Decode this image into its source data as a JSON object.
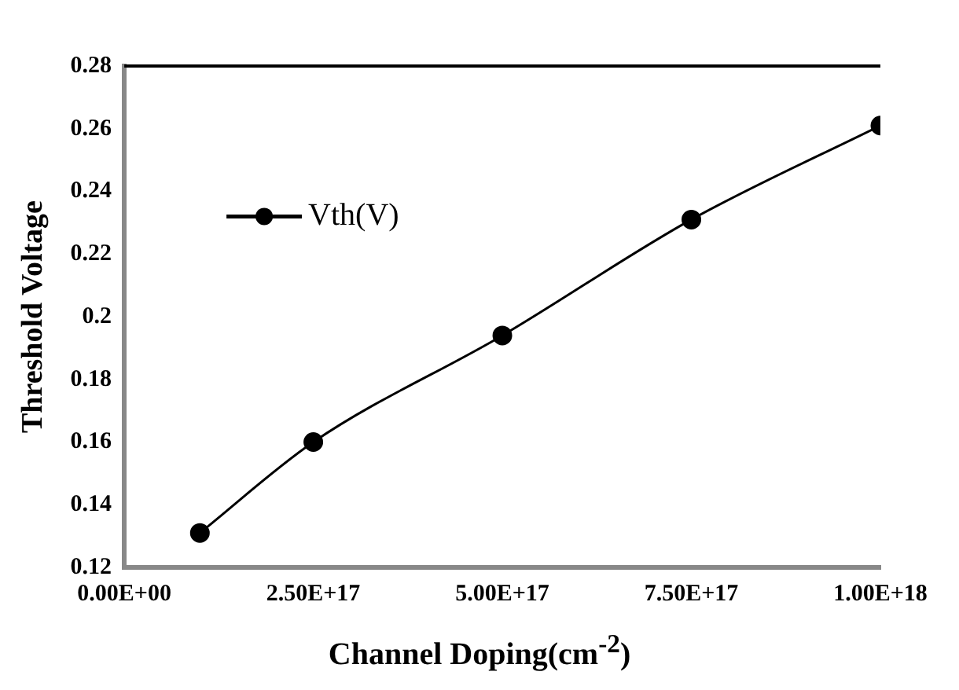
{
  "chart_data": {
    "type": "line",
    "xlabel": "Channel Doping(cm$^{-2}$)",
    "ylabel": "Threshold Voltage",
    "x": [
      1e+17,
      2.5e+17,
      5e+17,
      7.5e+17,
      1e+18
    ],
    "series": [
      {
        "name": "Vth(V)",
        "color": "#000000",
        "values": [
          0.131,
          0.16,
          0.194,
          0.231,
          0.261
        ]
      }
    ],
    "xlim": [
      0,
      1e+18
    ],
    "xticks": [
      {
        "value": 0,
        "label": "0.00E+00"
      },
      {
        "value": 2.5e+17,
        "label": "2.50E+17"
      },
      {
        "value": 5e+17,
        "label": "5.00E+17"
      },
      {
        "value": 7.5e+17,
        "label": "7.50E+17"
      },
      {
        "value": 1e+18,
        "label": "1.00E+18"
      }
    ],
    "ylim": [
      0.12,
      0.28
    ],
    "yticks": [
      0.12,
      0.14,
      0.16,
      0.18,
      {
        "value": 0.2,
        "label": "0.2"
      },
      0.22,
      0.24,
      0.26,
      0.28
    ],
    "grid": false,
    "legend": "left",
    "marker": "circle",
    "line_style": "solid"
  }
}
